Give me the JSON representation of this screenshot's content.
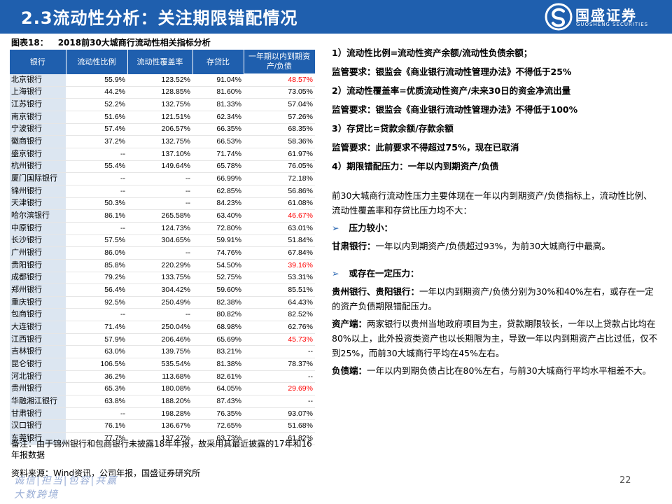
{
  "header": {
    "title": "2.3流动性分析：关注期限错配情况",
    "logo_cn": "国盛证券",
    "logo_en": "GUOSHENG SECURITIES"
  },
  "figure": {
    "number": "图表18：",
    "title": "2018前30大城商行流动性相关指标分析"
  },
  "table": {
    "headers": [
      "银行",
      "流动性比例",
      "流动性覆盖率",
      "存贷比",
      "一年期以内到期资产/负债"
    ],
    "rows": [
      [
        "北京银行",
        "55.9%",
        "123.52%",
        "91.04%",
        "48.57%"
      ],
      [
        "上海银行",
        "44.2%",
        "128.85%",
        "81.60%",
        "73.05%"
      ],
      [
        "江苏银行",
        "52.2%",
        "132.75%",
        "81.33%",
        "57.04%"
      ],
      [
        "南京银行",
        "51.6%",
        "121.51%",
        "62.34%",
        "57.26%"
      ],
      [
        "宁波银行",
        "57.4%",
        "206.57%",
        "66.35%",
        "68.35%"
      ],
      [
        "徽商银行",
        "37.2%",
        "132.75%",
        "66.53%",
        "58.36%"
      ],
      [
        "盛京银行",
        "--",
        "137.10%",
        "71.74%",
        "61.97%"
      ],
      [
        "杭州银行",
        "55.4%",
        "149.64%",
        "65.78%",
        "76.05%"
      ],
      [
        "厦门国际银行",
        "--",
        "--",
        "66.99%",
        "72.18%"
      ],
      [
        "锦州银行",
        "--",
        "--",
        "62.85%",
        "56.86%"
      ],
      [
        "天津银行",
        "50.3%",
        "--",
        "84.23%",
        "61.08%"
      ],
      [
        "哈尔滨银行",
        "86.1%",
        "265.58%",
        "63.40%",
        "46.67%"
      ],
      [
        "中原银行",
        "--",
        "124.73%",
        "72.80%",
        "63.01%"
      ],
      [
        "长沙银行",
        "57.5%",
        "304.65%",
        "59.91%",
        "51.84%"
      ],
      [
        "广州银行",
        "86.0%",
        "--",
        "74.76%",
        "67.84%"
      ],
      [
        "贵阳银行",
        "85.8%",
        "220.29%",
        "54.50%",
        "39.16%"
      ],
      [
        "成都银行",
        "79.2%",
        "133.75%",
        "52.75%",
        "53.31%"
      ],
      [
        "郑州银行",
        "56.4%",
        "304.42%",
        "59.60%",
        "85.51%"
      ],
      [
        "重庆银行",
        "92.5%",
        "250.49%",
        "82.38%",
        "64.43%"
      ],
      [
        "包商银行",
        "--",
        "--",
        "80.82%",
        "82.52%"
      ],
      [
        "大连银行",
        "71.4%",
        "250.04%",
        "68.98%",
        "62.76%"
      ],
      [
        "江西银行",
        "57.9%",
        "206.46%",
        "65.69%",
        "45.73%"
      ],
      [
        "吉林银行",
        "63.0%",
        "139.75%",
        "83.21%",
        "--"
      ],
      [
        "昆仑银行",
        "106.5%",
        "535.54%",
        "81.38%",
        "78.37%"
      ],
      [
        "河北银行",
        "36.2%",
        "113.68%",
        "82.61%",
        "--"
      ],
      [
        "贵州银行",
        "65.3%",
        "180.08%",
        "64.05%",
        "29.69%"
      ],
      [
        "华融湘江银行",
        "63.8%",
        "188.20%",
        "87.43%",
        "--"
      ],
      [
        "甘肃银行",
        "--",
        "198.28%",
        "76.35%",
        "93.07%"
      ],
      [
        "汉口银行",
        "76.1%",
        "136.67%",
        "72.65%",
        "51.68%"
      ],
      [
        "东莞银行",
        "77.7%",
        "137.27%",
        "63.73%",
        "61.82%"
      ]
    ],
    "highlight_color": "#ff0000",
    "highlight_values": [
      "48.57%",
      "46.67%",
      "39.16%",
      "45.73%",
      "29.69%"
    ]
  },
  "notes": {
    "remark": "备注：由于锦州银行和包商银行未披露18年年报，故采用其最近披露的17年和16年报数据",
    "source": "资料来源：Wind资讯，公司年报，国盛证券研究所"
  },
  "footer": {
    "slogan": "诚信|担当|包容|共赢",
    "slogan2": "大数跨境",
    "page": "22"
  },
  "right": {
    "defs": [
      "1）流动性比例=流动性资产余额/流动性负债余额；",
      "监管要求：银监会《商业银行流动性管理办法》不得低于25%",
      "2）流动性覆盖率=优质流动性资产/未来30日的资金净流出量",
      "监管要求：银监会《商业银行流动性管理办法》不得低于100%",
      "3）存贷比=贷款余额/存款余额",
      "监管要求：此前要求不得超过75%，现在已取消",
      "4）期限错配压力：一年以内到期资产/负债"
    ],
    "intro": "前30大城商行流动性压力主要体现在一年以内到期资产/负债指标上，流动性比例、流动性覆盖率和存贷比压力均不大：",
    "bullet1": "压力较小：",
    "gansu_label": "甘肃银行：",
    "gansu_text": "一年以内到期资产/负债超过93%，为前30大城商行中最高。",
    "bullet2": "或存在一定压力：",
    "gz_label": "贵州银行、贵阳银行：",
    "gz_text": "一年以内到期资产/负债分别为30%和40%左右，或存在一定的资产负债期限错配压力。",
    "asset_label": "资产端：",
    "asset_text": "两家银行以贵州当地政府项目为主，贷款期限较长，一年以上贷款占比均在80%以上，此外投资类资产也以长期限为主，导致一年以内到期资产占比过低，仅不到25%，而前30大城商行平均在45%左右。",
    "liab_label": "负债端：",
    "liab_text": "一年以内到期负债占比在80%左右，与前30大城商行平均水平相差不大。"
  }
}
